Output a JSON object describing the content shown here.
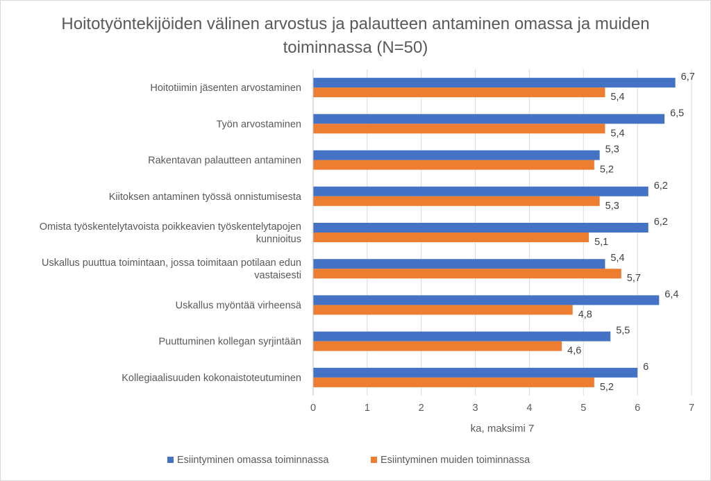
{
  "chart_data": {
    "type": "bar",
    "orientation": "horizontal",
    "title": "Hoitotyöntekijöiden välinen arvostus ja palautteen antaminen omassa ja muiden toiminnassa (N=50)",
    "xlabel": "ka, maksimi 7",
    "ylabel": "",
    "xlim": [
      0,
      7
    ],
    "ticks": [
      0,
      1,
      2,
      3,
      4,
      5,
      6,
      7
    ],
    "grid": true,
    "legend_position": "bottom",
    "categories": [
      [
        "Hoitotiimin jäsenten arvostaminen"
      ],
      [
        "Työn arvostaminen"
      ],
      [
        "Rakentavan palautteen antaminen"
      ],
      [
        "Kiitoksen antaminen työssä onnistumisesta"
      ],
      [
        "Omista työskentelytavoista poikkeavien työskentelytapojen",
        "kunnioitus"
      ],
      [
        "Uskallus puuttua toimintaan, jossa toimitaan potilaan edun",
        "vastaisesti"
      ],
      [
        "Uskallus myöntää virheensä"
      ],
      [
        "Puuttuminen kollegan syrjintään"
      ],
      [
        "Kollegiaalisuuden kokonaistoteutuminen"
      ]
    ],
    "series": [
      {
        "name": "Esiintyminen omassa toiminnassa",
        "color": "#4472C4",
        "values": [
          6.7,
          6.5,
          5.3,
          6.2,
          6.2,
          5.4,
          6.4,
          5.5,
          6
        ],
        "labels": [
          "6,7",
          "6,5",
          "5,3",
          "6,2",
          "6,2",
          "5,4",
          "6,4",
          "5,5",
          "6"
        ]
      },
      {
        "name": "Esiintyminen muiden toiminnassa",
        "color": "#ED7D31",
        "values": [
          5.4,
          5.4,
          5.2,
          5.3,
          5.1,
          5.7,
          4.8,
          4.6,
          5.2
        ],
        "labels": [
          "5,4",
          "5,4",
          "5,2",
          "5,3",
          "5,1",
          "5,7",
          "4,8",
          "4,6",
          "5,2"
        ]
      }
    ],
    "gridline_color": "#d9d9d9"
  }
}
